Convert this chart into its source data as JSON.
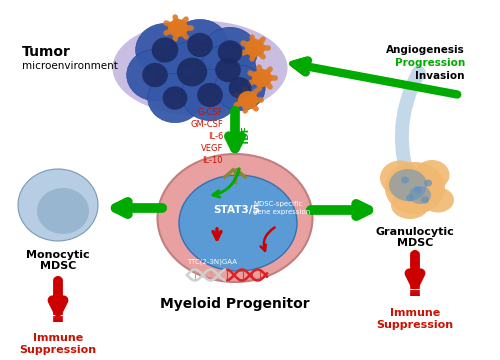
{
  "bg_color": "#ffffff",
  "tumor_label1": "Tumor",
  "tumor_label2": "microenvironment",
  "angiogenesis_labels": [
    "Angiogenesis",
    "Progression",
    "Invasion"
  ],
  "tdf_factors": [
    "G-CSF",
    "GM-CSF",
    "IL-6",
    "VEGF",
    "IL-10"
  ],
  "tdf_label": "TDF",
  "stat_label": "STAT3/5",
  "gene_label": "MDSC-specific\ngene expression",
  "ttc_label": "TTC(2-3N)GAA",
  "myeloid_label": "Myeloid Progenitor",
  "monocytic_label1": "Monocytic",
  "monocytic_label2": "MDSC",
  "granulocytic_label1": "Granulocytic",
  "granulocytic_label2": "MDSC",
  "immune_label1": "Immune",
  "immune_label2": "Suppression",
  "outer_cell_color": "#e8a0a0",
  "inner_cell_color": "#5b9bd5",
  "tumor_purple": "#b8a8d8",
  "tumor_blue": "#3558a8",
  "tumor_blue_dark": "#1a2860",
  "tumor_orange": "#e07820",
  "green_arrow": "#00aa00",
  "green_arrow_dark": "#007700",
  "red_arrow": "#cc0000",
  "red_text": "#cc1100",
  "tdf_red": "#cc1100",
  "light_blue_curve": "#aac8e0",
  "monocyte_outer": "#b0c8e0",
  "monocyte_inner": "#8aaac8",
  "gran_outer": "#f0b870",
  "gran_blue": "#6090c0"
}
